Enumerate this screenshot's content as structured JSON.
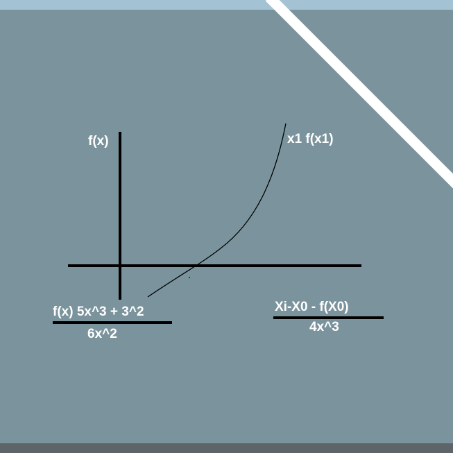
{
  "diagram": {
    "y_axis_label": "f(x)",
    "point_label": "x1 f(x1)",
    "left_formula": {
      "numerator": "f(x) 5x^3 + 3^2",
      "denominator": "6x^2"
    },
    "right_formula": {
      "numerator": "Xi-X0 - f(X0)",
      "denominator": "4x^3"
    }
  },
  "colors": {
    "board": "#7a939c",
    "top_strip": "#a3c3d5",
    "bottom_strip": "#5e6569",
    "glare_stripe": "#ffffff",
    "ink": "#000000",
    "text": "#ffffff"
  }
}
